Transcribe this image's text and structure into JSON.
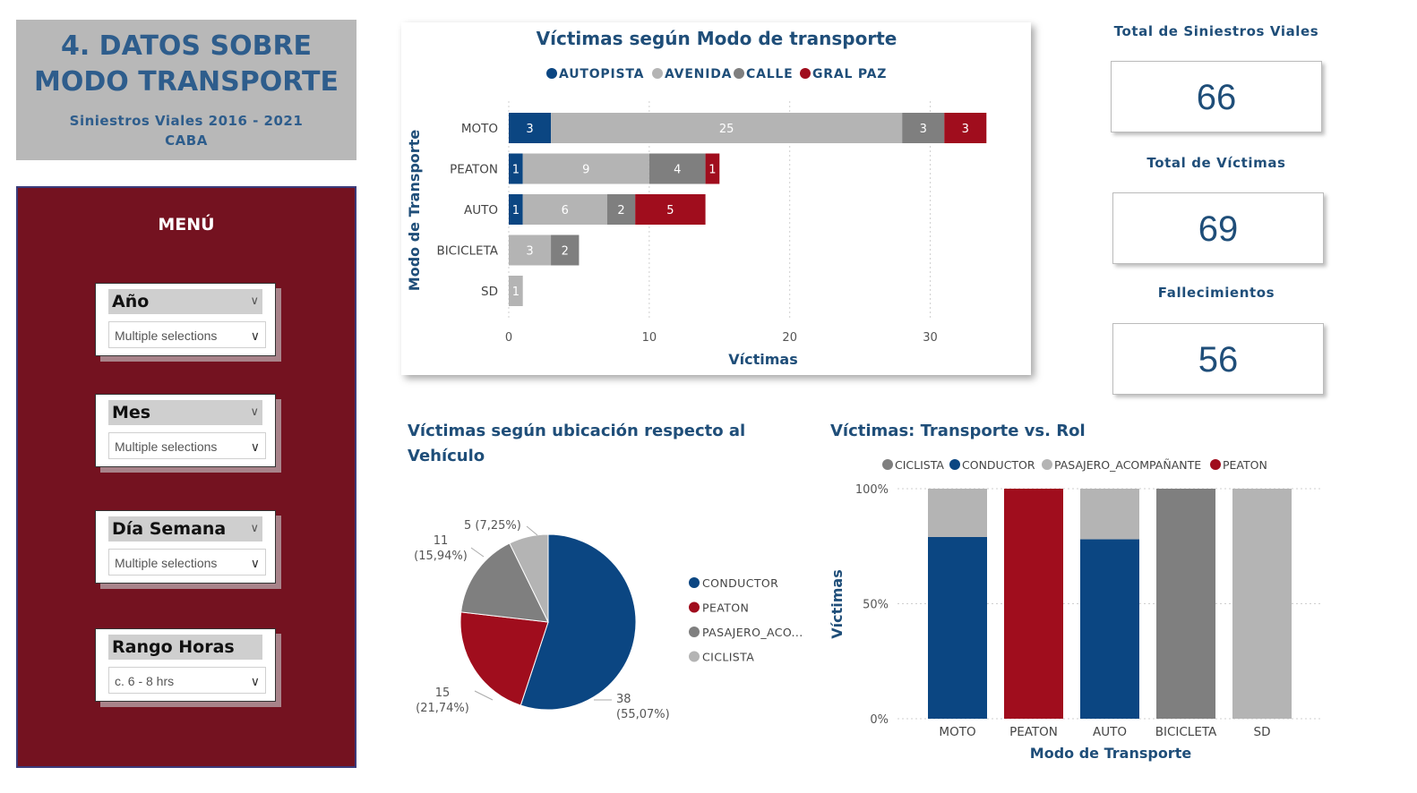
{
  "header": {
    "title": "4. DATOS SOBRE\nMODO TRANSPORTE",
    "subtitle": "Siniestros Viales 2016 - 2021\nCABA"
  },
  "menu": {
    "title": "MENÚ",
    "slicers": [
      {
        "label": "Año",
        "value": "Multiple selections"
      },
      {
        "label": "Mes",
        "value": "Multiple selections"
      },
      {
        "label": "Día Semana",
        "value": "Multiple selections"
      },
      {
        "label": "Rango Horas",
        "value": "c. 6 - 8 hrs"
      }
    ]
  },
  "kpis": [
    {
      "label": "Total de Siniestros Viales",
      "value": "66"
    },
    {
      "label": "Total de Víctimas",
      "value": "69"
    },
    {
      "label": "Fallecimientos",
      "value": "56"
    }
  ],
  "colors": {
    "blue": "#0b4682",
    "lightgray": "#b4b4b4",
    "darkgray": "#7f7f7f",
    "red": "#a00d1d",
    "title": "#1f4e79"
  },
  "chart_data": [
    {
      "type": "bar",
      "orientation": "horizontal",
      "stacked": true,
      "title": "Víctimas según Modo de transporte",
      "xlabel": "Víctimas",
      "ylabel": "Modo de Transporte",
      "categories": [
        "MOTO",
        "PEATON",
        "AUTO",
        "BICICLETA",
        "SD"
      ],
      "series": [
        {
          "name": "AUTOPISTA",
          "color": "#0b4682",
          "values": [
            3,
            1,
            1,
            0,
            0
          ]
        },
        {
          "name": "AVENIDA",
          "color": "#b4b4b4",
          "values": [
            25,
            9,
            6,
            3,
            1
          ]
        },
        {
          "name": "CALLE",
          "color": "#7f7f7f",
          "values": [
            3,
            4,
            2,
            2,
            0
          ]
        },
        {
          "name": "GRAL PAZ",
          "color": "#a00d1d",
          "values": [
            3,
            1,
            5,
            0,
            0
          ]
        }
      ],
      "xlim": [
        0,
        35
      ],
      "xticks": [
        0,
        10,
        20,
        30
      ],
      "legend": "top",
      "grid": true
    },
    {
      "type": "pie",
      "title": "Víctimas según ubicación respecto al Vehículo",
      "slices": [
        {
          "name": "CONDUCTOR",
          "legend": "CONDUCTOR",
          "value": 38,
          "pct": "55,07%",
          "color": "#0b4682"
        },
        {
          "name": "PEATON",
          "legend": "PEATON",
          "value": 15,
          "pct": "21,74%",
          "color": "#a00d1d"
        },
        {
          "name": "PASAJERO_ACOMPAÑANTE",
          "legend": "PASAJERO_ACO...",
          "value": 11,
          "pct": "15,94%",
          "color": "#7f7f7f"
        },
        {
          "name": "CICLISTA",
          "legend": "CICLISTA",
          "value": 5,
          "pct": "7,25%",
          "color": "#b4b4b4"
        }
      ],
      "legend": "right"
    },
    {
      "type": "bar",
      "stacked": true,
      "percent": true,
      "title": "Víctimas: Transporte vs. Rol",
      "xlabel": "Modo de Transporte",
      "ylabel": "Víctimas",
      "categories": [
        "MOTO",
        "PEATON",
        "AUTO",
        "BICICLETA",
        "SD"
      ],
      "series": [
        {
          "name": "CICLISTA",
          "color": "#7f7f7f",
          "values": [
            0,
            0,
            0,
            100,
            0
          ]
        },
        {
          "name": "CONDUCTOR",
          "color": "#0b4682",
          "values": [
            79,
            0,
            78,
            0,
            0
          ]
        },
        {
          "name": "PASAJERO_ACOMPAÑANTE",
          "color": "#b4b4b4",
          "values": [
            21,
            0,
            22,
            0,
            100
          ]
        },
        {
          "name": "PEATON",
          "color": "#a00d1d",
          "values": [
            0,
            100,
            0,
            0,
            0
          ]
        }
      ],
      "yticks": [
        "0%",
        "50%",
        "100%"
      ],
      "ylim": [
        0,
        100
      ],
      "legend": "top",
      "grid": true
    }
  ]
}
